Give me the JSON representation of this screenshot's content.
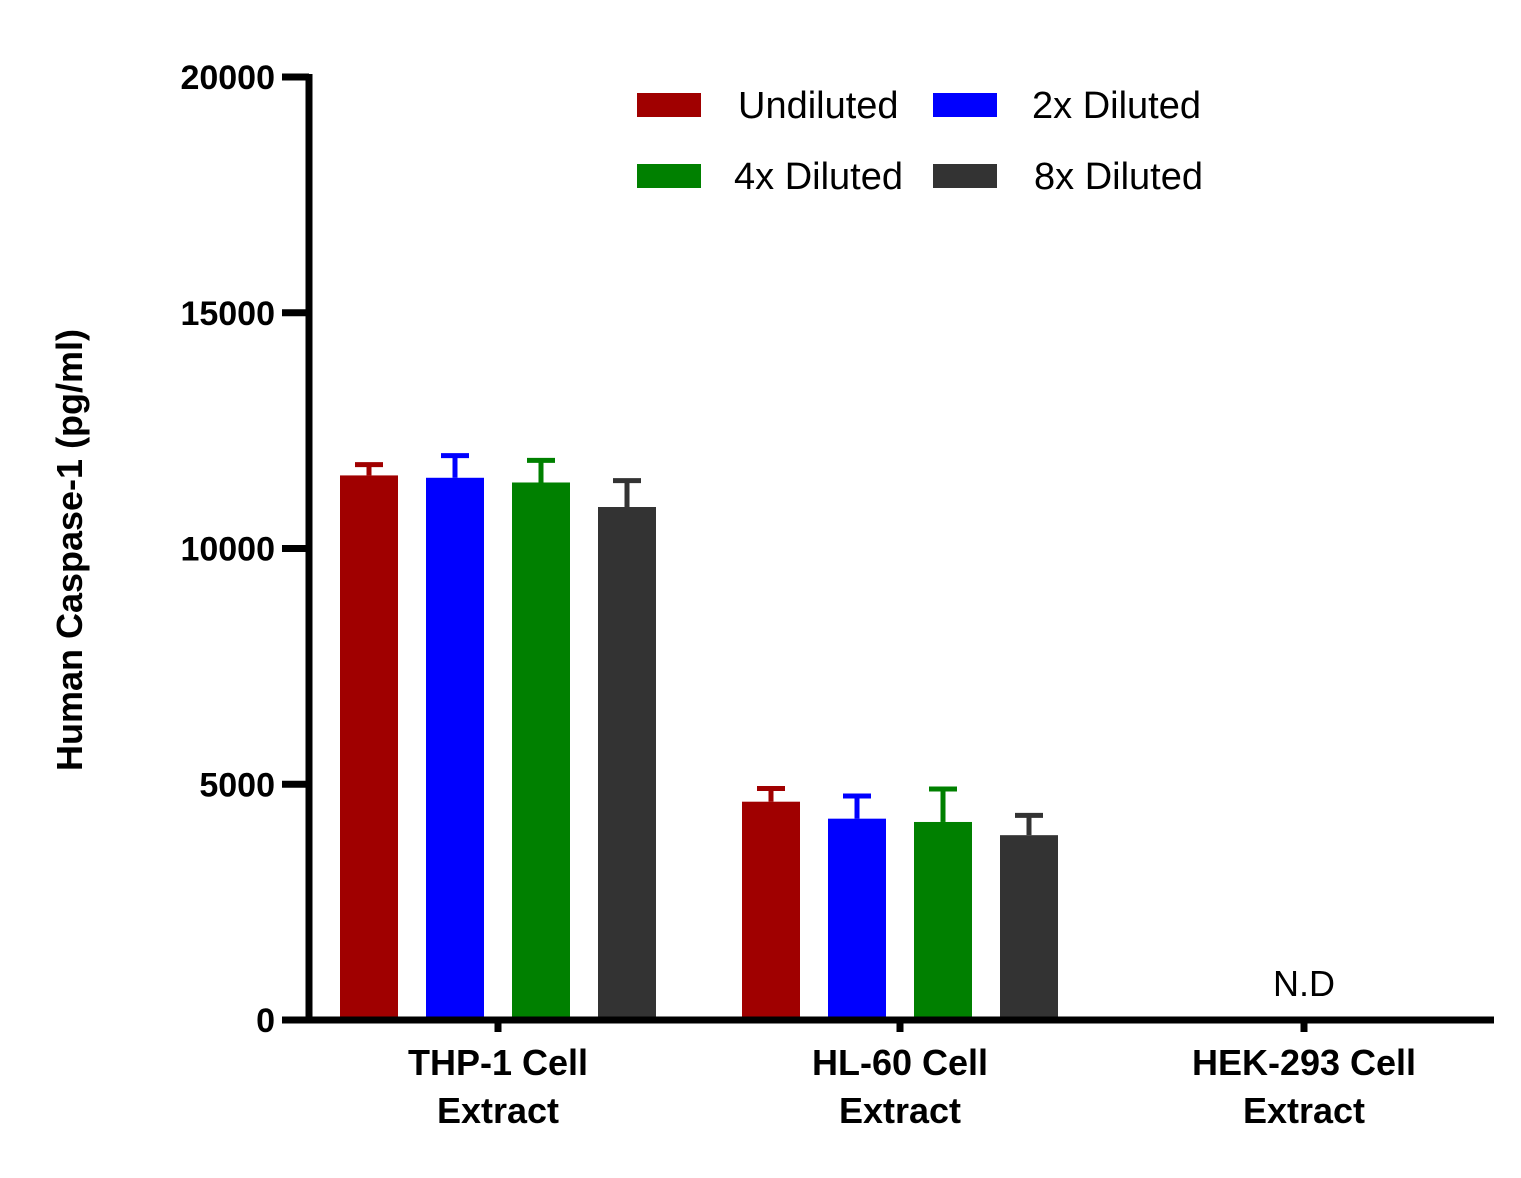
{
  "chart_data": {
    "type": "bar",
    "title": "",
    "xlabel": "",
    "ylabel": "Human Caspase-1 (pg/ml)",
    "ylim": [
      0,
      20000
    ],
    "yticks": [
      0,
      5000,
      10000,
      15000,
      20000
    ],
    "ytick_labels": [
      "0",
      "5000",
      "10000",
      "15000",
      "20000"
    ],
    "grid": false,
    "legend_position": "top-center",
    "categories": [
      [
        "THP-1 Cell",
        "Extract"
      ],
      [
        "HL-60 Cell",
        "Extract"
      ],
      [
        "HEK-293 Cell",
        "Extract"
      ]
    ],
    "series": [
      {
        "name": "Undiluted",
        "color": "#a00000",
        "values": [
          11550,
          4630,
          null
        ],
        "errors": [
          230,
          280,
          null
        ]
      },
      {
        "name": "2x Diluted",
        "color": "#0000ff",
        "values": [
          11500,
          4270,
          null
        ],
        "errors": [
          470,
          480,
          null
        ]
      },
      {
        "name": "4x Diluted",
        "color": "#008000",
        "values": [
          11400,
          4200,
          null
        ],
        "errors": [
          470,
          700,
          null
        ]
      },
      {
        "name": "8x Diluted",
        "color": "#333333",
        "values": [
          10880,
          3920,
          null
        ],
        "errors": [
          560,
          420,
          null
        ]
      }
    ],
    "annotations": [
      {
        "category_index": 2,
        "text": "N.D"
      }
    ]
  }
}
